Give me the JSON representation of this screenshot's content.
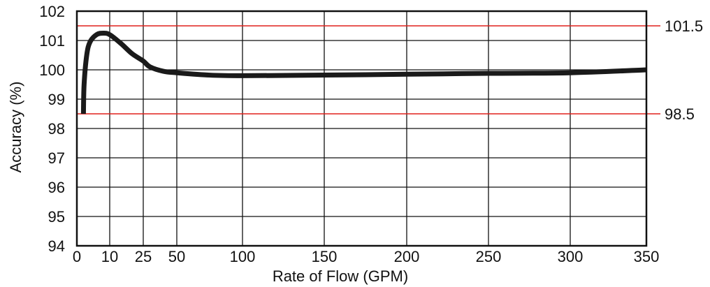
{
  "chart_data": {
    "type": "line",
    "xlabel": "Rate of Flow (GPM)",
    "ylabel": "Accuracy (%)",
    "x_ticks": [
      "0",
      "10",
      "25",
      "50",
      "100",
      "150",
      "200",
      "250",
      "300",
      "350"
    ],
    "y_ticks": [
      "94",
      "95",
      "96",
      "97",
      "98",
      "99",
      "100",
      "101",
      "102"
    ],
    "ylim": [
      94,
      102
    ],
    "grid": true,
    "reference_lines": [
      {
        "label": "101.5",
        "value": 101.5,
        "color": "#e0201b"
      },
      {
        "label": "98.5",
        "value": 98.5,
        "color": "#e0201b"
      }
    ],
    "series": [
      {
        "color": "#1a1a1a",
        "points": [
          [
            2,
            98.5
          ],
          [
            2.2,
            99.5
          ],
          [
            3,
            100.5
          ],
          [
            4,
            100.95
          ],
          [
            6,
            101.2
          ],
          [
            8,
            101.25
          ],
          [
            10,
            101.2
          ],
          [
            15,
            100.9
          ],
          [
            20,
            100.55
          ],
          [
            25,
            100.3
          ],
          [
            30,
            100.1
          ],
          [
            40,
            99.95
          ],
          [
            50,
            99.9
          ],
          [
            75,
            99.82
          ],
          [
            100,
            99.8
          ],
          [
            150,
            99.82
          ],
          [
            200,
            99.85
          ],
          [
            250,
            99.88
          ],
          [
            300,
            99.9
          ],
          [
            350,
            100.0
          ]
        ]
      }
    ]
  }
}
